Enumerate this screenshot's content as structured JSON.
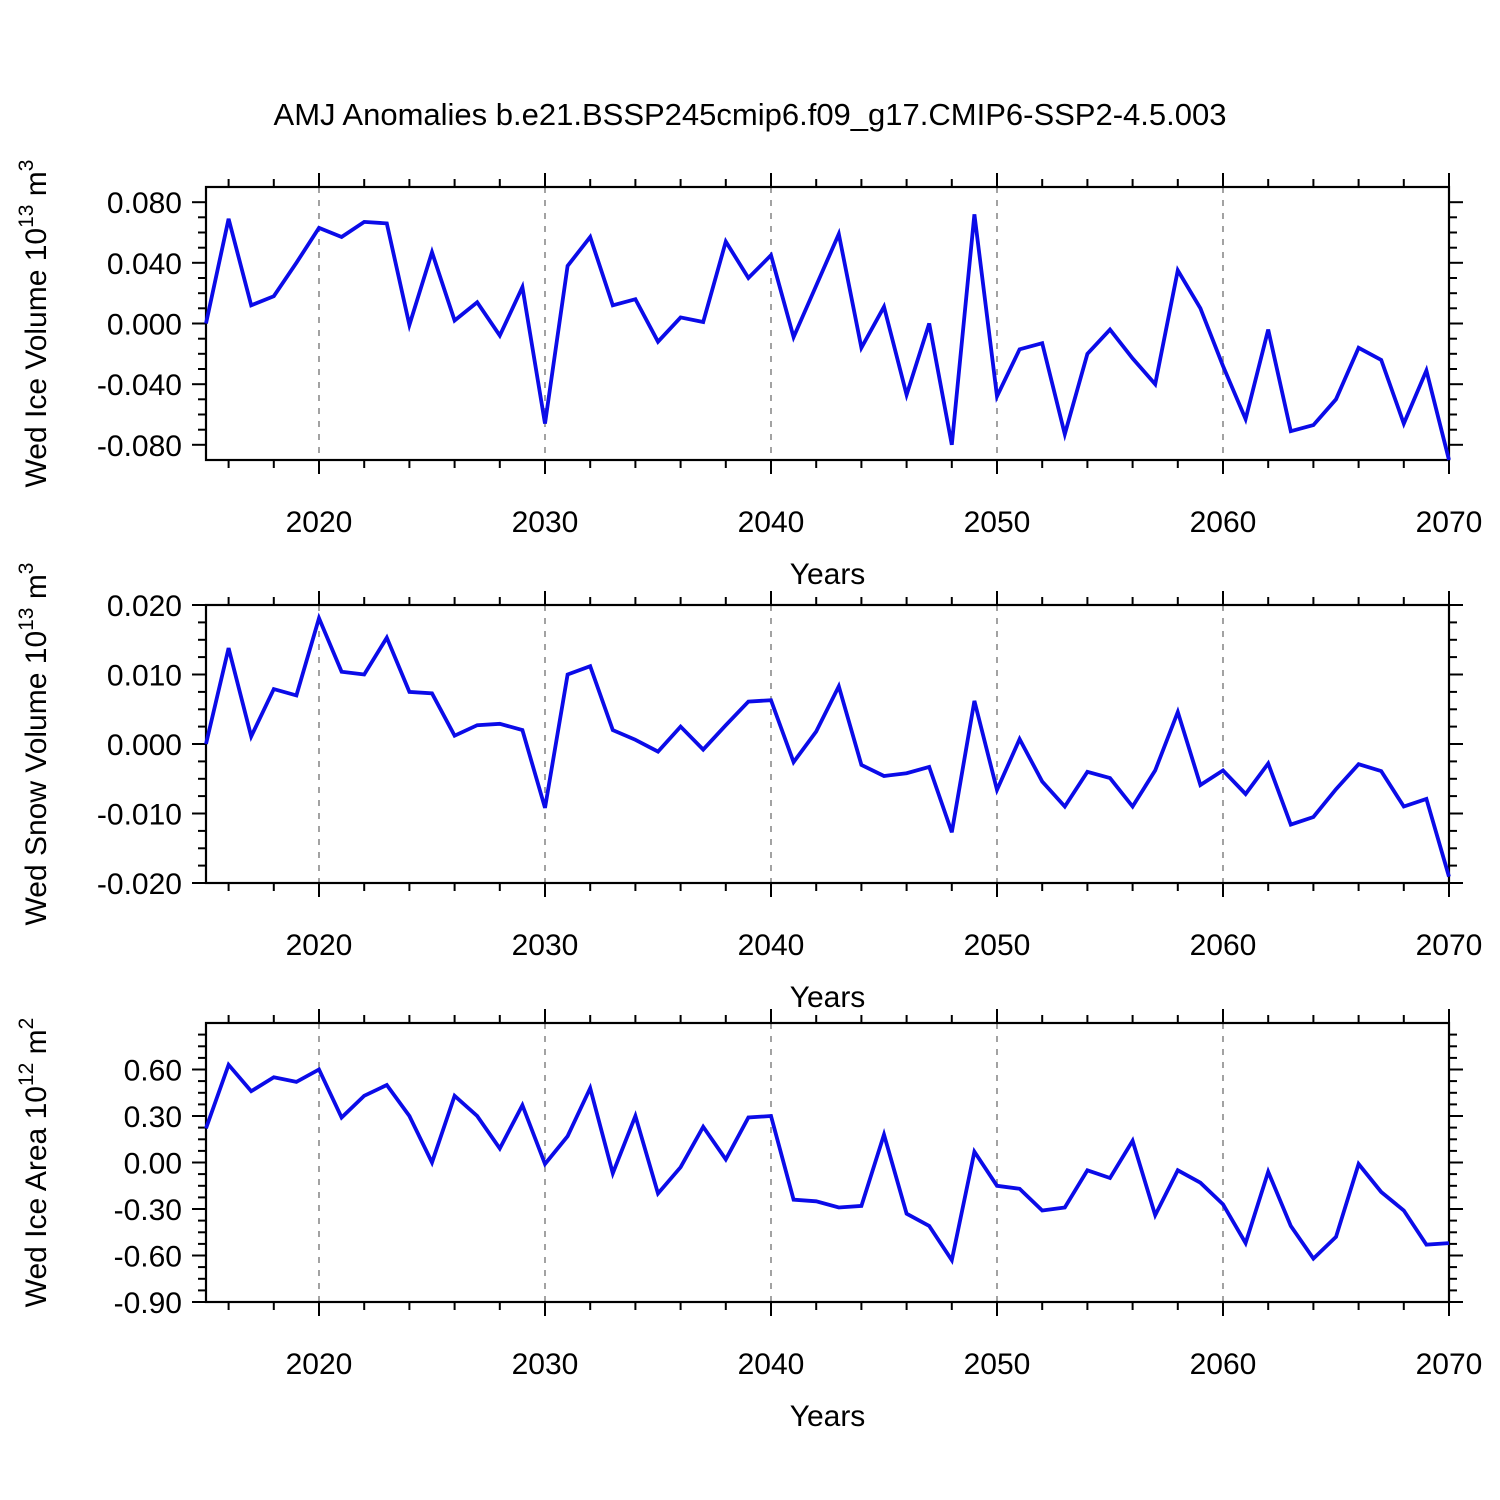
{
  "title": "AMJ Anomalies b.e21.BSSP245cmip6.f09_g17.CMIP6-SSP2-4.5.003",
  "xlabel": "Years",
  "line_color": "#0b0be8",
  "grid_color": "#8c8c8c",
  "years": [
    2015,
    2016,
    2017,
    2018,
    2019,
    2020,
    2021,
    2022,
    2023,
    2024,
    2025,
    2026,
    2027,
    2028,
    2029,
    2030,
    2031,
    2032,
    2033,
    2034,
    2035,
    2036,
    2037,
    2038,
    2039,
    2040,
    2041,
    2042,
    2043,
    2044,
    2045,
    2046,
    2047,
    2048,
    2049,
    2050,
    2051,
    2052,
    2053,
    2054,
    2055,
    2056,
    2057,
    2058,
    2059,
    2060,
    2061,
    2062,
    2063,
    2064,
    2065,
    2066,
    2067,
    2068,
    2069,
    2070
  ],
  "chart_data": [
    {
      "type": "line",
      "name": "wed-ice-volume",
      "ylabel": {
        "prefix": "Wed Ice Volume 10",
        "sup1": "13",
        "mid": " m",
        "sup2": "3"
      },
      "ylabel_plain": "Wed Ice Volume 10^13 m^3",
      "xlabel": "Years",
      "x_range": [
        2015,
        2070
      ],
      "ylim": [
        -0.09,
        0.09
      ],
      "ytick_values": [
        0.08,
        0.04,
        0.0,
        -0.04,
        -0.08
      ],
      "ytick_labels": [
        "0.080",
        "0.040",
        "0.000",
        "-0.040",
        "-0.080"
      ],
      "yminor_step": 0.01,
      "xtick_values": [
        2020,
        2030,
        2040,
        2050,
        2060,
        2070
      ],
      "xtick_labels": [
        "2020",
        "2030",
        "2040",
        "2050",
        "2060",
        "2070"
      ],
      "xminor_step": 2,
      "gridline_x": [
        2020,
        2030,
        2040,
        2050,
        2060
      ],
      "grid": "dashed-vertical",
      "legend": "none",
      "values": [
        0.0,
        0.069,
        0.012,
        0.018,
        0.04,
        0.063,
        0.057,
        0.067,
        0.066,
        -0.001,
        0.047,
        0.002,
        0.014,
        -0.008,
        0.024,
        -0.066,
        0.038,
        0.057,
        0.012,
        0.016,
        -0.012,
        0.004,
        0.001,
        0.054,
        0.03,
        0.045,
        -0.009,
        0.025,
        0.059,
        -0.016,
        0.011,
        -0.047,
        0.0,
        -0.08,
        0.072,
        -0.048,
        -0.017,
        -0.013,
        -0.073,
        -0.02,
        -0.004,
        -0.023,
        -0.04,
        0.035,
        0.01,
        -0.028,
        -0.063,
        -0.004,
        -0.071,
        -0.067,
        -0.05,
        -0.016,
        -0.024,
        -0.066,
        -0.031,
        -0.09
      ]
    },
    {
      "type": "line",
      "name": "wed-snow-volume",
      "ylabel": {
        "prefix": "Wed Snow Volume 10",
        "sup1": "13",
        "mid": " m",
        "sup2": "3"
      },
      "ylabel_plain": "Wed Snow Volume 10^13 m^3",
      "xlabel": "Years",
      "x_range": [
        2015,
        2070
      ],
      "ylim": [
        -0.02,
        0.02
      ],
      "ytick_values": [
        0.02,
        0.01,
        0.0,
        -0.01,
        -0.02
      ],
      "ytick_labels": [
        "0.020",
        "0.010",
        "0.000",
        "-0.010",
        "-0.020"
      ],
      "yminor_step": 0.0025,
      "xtick_values": [
        2020,
        2030,
        2040,
        2050,
        2060,
        2070
      ],
      "xtick_labels": [
        "2020",
        "2030",
        "2040",
        "2050",
        "2060",
        "2070"
      ],
      "xminor_step": 2,
      "gridline_x": [
        2020,
        2030,
        2040,
        2050,
        2060
      ],
      "grid": "dashed-vertical",
      "legend": "none",
      "values": [
        0.0,
        0.0138,
        0.0011,
        0.0079,
        0.007,
        0.0181,
        0.0104,
        0.01,
        0.0153,
        0.0075,
        0.0073,
        0.0012,
        0.0027,
        0.0029,
        0.002,
        -0.0092,
        0.01,
        0.0112,
        0.002,
        0.0006,
        -0.0011,
        0.0025,
        -0.0008,
        0.0027,
        0.0061,
        0.0063,
        -0.0026,
        0.0018,
        0.0083,
        -0.003,
        -0.0046,
        -0.0042,
        -0.0033,
        -0.0127,
        0.0062,
        -0.0066,
        0.0007,
        -0.0054,
        -0.009,
        -0.004,
        -0.0049,
        -0.009,
        -0.0038,
        0.0046,
        -0.0059,
        -0.0038,
        -0.0072,
        -0.0028,
        -0.0116,
        -0.0105,
        -0.0065,
        -0.0029,
        -0.0039,
        -0.009,
        -0.0079,
        -0.0191
      ]
    },
    {
      "type": "line",
      "name": "wed-ice-area",
      "ylabel": {
        "prefix": "Wed Ice Area 10",
        "sup1": "12",
        "mid": " m",
        "sup2": "2"
      },
      "ylabel_plain": "Wed Ice Area 10^12 m^2",
      "xlabel": "Years",
      "x_range": [
        2015,
        2070
      ],
      "ylim": [
        -0.9,
        0.9
      ],
      "ytick_values": [
        0.6,
        0.3,
        0.0,
        -0.3,
        -0.6,
        -0.9
      ],
      "ytick_labels": [
        "0.60",
        "0.30",
        "0.00",
        "-0.30",
        "-0.60",
        "-0.90"
      ],
      "yminor_step": 0.075,
      "xtick_values": [
        2020,
        2030,
        2040,
        2050,
        2060,
        2070
      ],
      "xtick_labels": [
        "2020",
        "2030",
        "2040",
        "2050",
        "2060",
        "2070"
      ],
      "xminor_step": 2,
      "gridline_x": [
        2020,
        2030,
        2040,
        2050,
        2060
      ],
      "grid": "dashed-vertical",
      "legend": "none",
      "values": [
        0.22,
        0.63,
        0.46,
        0.55,
        0.52,
        0.6,
        0.29,
        0.43,
        0.5,
        0.3,
        0.0,
        0.43,
        0.3,
        0.09,
        0.37,
        -0.01,
        0.17,
        0.48,
        -0.07,
        0.3,
        -0.2,
        -0.03,
        0.23,
        0.02,
        0.29,
        0.3,
        -0.24,
        -0.25,
        -0.29,
        -0.28,
        0.18,
        -0.33,
        -0.41,
        -0.63,
        0.07,
        -0.15,
        -0.17,
        -0.31,
        -0.29,
        -0.05,
        -0.1,
        0.14,
        -0.34,
        -0.05,
        -0.13,
        -0.27,
        -0.52,
        -0.06,
        -0.41,
        -0.62,
        -0.48,
        -0.01,
        -0.19,
        -0.31,
        -0.53,
        -0.52
      ]
    }
  ]
}
